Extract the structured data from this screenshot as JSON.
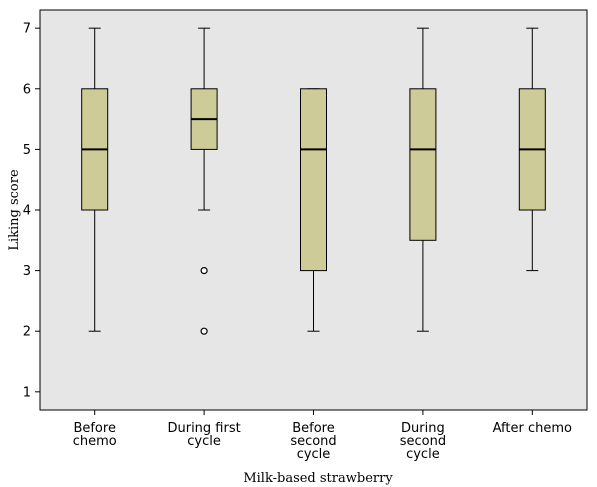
{
  "chart_data": {
    "type": "boxplot",
    "xlabel": "Milk-based strawberry",
    "ylabel": "Liking score",
    "ylim": [
      0.7,
      7.3
    ],
    "yticks": [
      1,
      2,
      3,
      4,
      5,
      6,
      7
    ],
    "grid": false,
    "colors": {
      "plot_background": "#e6e6e6",
      "box_fill": "#cdcc98",
      "stroke": "#000000"
    },
    "categories": [
      [
        "Before",
        "chemo"
      ],
      [
        "During first",
        "cycle"
      ],
      [
        "Before",
        "second",
        "cycle"
      ],
      [
        "During",
        "second",
        "cycle"
      ],
      [
        "After chemo"
      ]
    ],
    "boxes": [
      {
        "whisker_low": 2,
        "q1": 4,
        "median": 5,
        "q3": 6,
        "whisker_high": 7,
        "outliers": []
      },
      {
        "whisker_low": 4,
        "q1": 5,
        "median": 5.5,
        "q3": 6,
        "whisker_high": 7,
        "outliers": [
          3,
          2
        ]
      },
      {
        "whisker_low": 2,
        "q1": 3,
        "median": 5,
        "q3": 6,
        "whisker_high": 6,
        "outliers": []
      },
      {
        "whisker_low": 2,
        "q1": 3.5,
        "median": 5,
        "q3": 6,
        "whisker_high": 7,
        "outliers": []
      },
      {
        "whisker_low": 3,
        "q1": 4,
        "median": 5,
        "q3": 6,
        "whisker_high": 7,
        "outliers": []
      }
    ]
  }
}
